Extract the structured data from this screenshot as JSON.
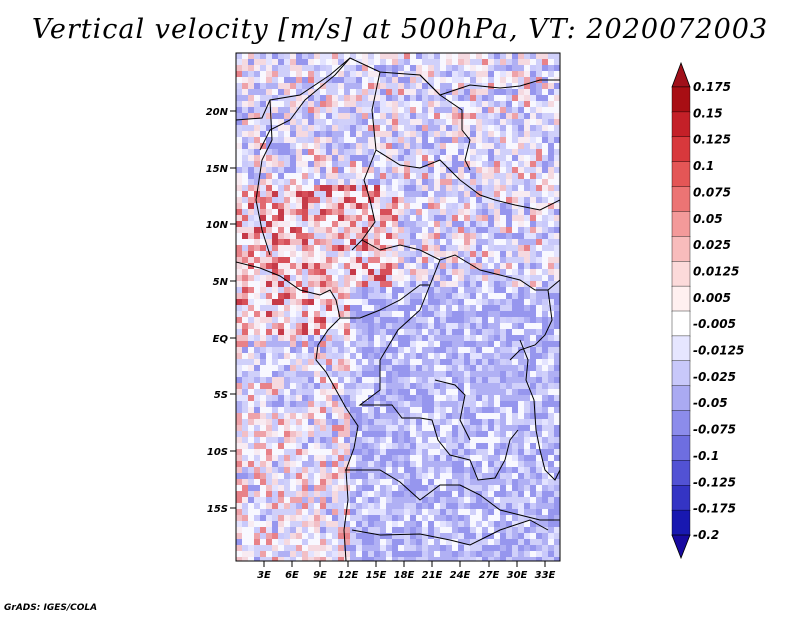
{
  "title": "Vertical velocity [m/s] at 500hPa, VT: 2020072003",
  "footer": "GrADS: IGES/COLA",
  "axes": {
    "lat_ticks": [
      "20N",
      "15N",
      "10N",
      "5N",
      "EQ",
      "5S",
      "10S",
      "15S"
    ],
    "lon_ticks": [
      "3E",
      "6E",
      "9E",
      "12E",
      "15E",
      "18E",
      "21E",
      "24E",
      "27E",
      "30E",
      "33E"
    ]
  },
  "colorbar": {
    "labels": [
      "0.175",
      "0.15",
      "0.125",
      "0.1",
      "0.075",
      "0.05",
      "0.025",
      "0.0125",
      "0.005",
      "-0.005",
      "-0.0125",
      "-0.025",
      "-0.05",
      "-0.075",
      "-0.1",
      "-0.125",
      "-0.175",
      "-0.2"
    ],
    "colors": [
      "#a80e14",
      "#c42028",
      "#d8383c",
      "#e45656",
      "#ec7474",
      "#f39a9a",
      "#f8bcbc",
      "#fcdada",
      "#fff0f0",
      "#ffffff",
      "#e6e6ff",
      "#c8c8fa",
      "#aaaaf2",
      "#8c8ceb",
      "#6e6ee0",
      "#5252d4",
      "#3434c4",
      "#1818b0"
    ],
    "top_color": "#a0101a",
    "bottom_color": "#180aa0"
  },
  "field": {
    "dominant_colors": [
      "#c8c8fa",
      "#aaaaf2",
      "#fcdada",
      "#f8bcbc",
      "#ffffff",
      "#8c8ceb",
      "#ec7474",
      "#c42028"
    ]
  }
}
